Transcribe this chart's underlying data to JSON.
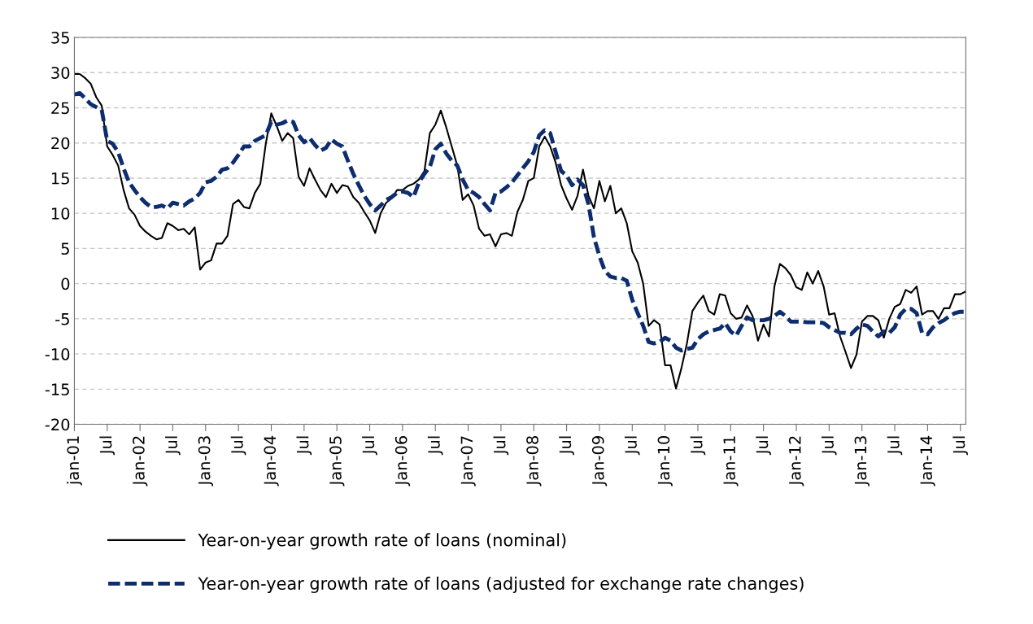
{
  "chart_data": {
    "type": "line",
    "categories": [
      "jan-01",
      null,
      null,
      null,
      null,
      null,
      "Jul",
      null,
      null,
      null,
      null,
      null,
      "Jan-02",
      null,
      null,
      null,
      null,
      null,
      "Jul",
      null,
      null,
      null,
      null,
      null,
      "Jan-03",
      null,
      null,
      null,
      null,
      null,
      "Jul",
      null,
      null,
      null,
      null,
      null,
      "Jan-04",
      null,
      null,
      null,
      null,
      null,
      "Jul",
      null,
      null,
      null,
      null,
      null,
      "Jan-05",
      null,
      null,
      null,
      null,
      null,
      "Jul",
      null,
      null,
      null,
      null,
      null,
      "Jan-06",
      null,
      null,
      null,
      null,
      null,
      "Jul",
      null,
      null,
      null,
      null,
      null,
      "Jan-07",
      null,
      null,
      null,
      null,
      null,
      "Jul",
      null,
      null,
      null,
      null,
      null,
      "Jan-08",
      null,
      null,
      null,
      null,
      null,
      "Jul",
      null,
      null,
      null,
      null,
      null,
      "Jan-09",
      null,
      null,
      null,
      null,
      null,
      "Jul",
      null,
      null,
      null,
      null,
      null,
      "Jan-10",
      null,
      null,
      null,
      null,
      null,
      "Jul",
      null,
      null,
      null,
      null,
      null,
      "Jan-11",
      null,
      null,
      null,
      null,
      null,
      "Jul",
      null,
      null,
      null,
      null,
      null,
      "Jan-12",
      null,
      null,
      null,
      null,
      null,
      "Jul",
      null,
      null,
      null,
      null,
      null,
      "Jan-13",
      null,
      null,
      null,
      null,
      null,
      "Jul",
      null,
      null,
      null,
      null,
      null,
      "Jan-14",
      null,
      null,
      null,
      null,
      null,
      "Jul",
      null
    ],
    "series": [
      {
        "name": "Year-on-year growth rate of loans (nominal)",
        "color": "#000000",
        "line_style": "solid",
        "values": [
          29.8,
          29.8,
          29.2,
          28.4,
          26.5,
          25.3,
          19.5,
          18.3,
          16.8,
          13.3,
          10.7,
          9.8,
          8.2,
          7.4,
          6.8,
          6.3,
          6.5,
          8.6,
          8.2,
          7.6,
          7.8,
          7.0,
          8.0,
          2.0,
          3.0,
          3.3,
          5.7,
          5.7,
          6.8,
          11.3,
          11.9,
          10.9,
          10.7,
          12.9,
          14.2,
          19.9,
          24.2,
          22.4,
          20.3,
          21.4,
          20.7,
          15.2,
          13.9,
          16.4,
          14.8,
          13.3,
          12.3,
          14.2,
          12.9,
          14.0,
          13.8,
          12.3,
          11.5,
          10.2,
          9.0,
          7.2,
          10.0,
          11.5,
          12.1,
          13.3,
          13.3,
          13.9,
          14.2,
          14.8,
          16.0,
          21.4,
          22.6,
          24.6,
          22.2,
          19.5,
          16.8,
          11.9,
          12.7,
          11.1,
          7.8,
          6.8,
          7.0,
          5.3,
          7.0,
          7.2,
          6.8,
          10.2,
          11.9,
          14.6,
          15.0,
          19.5,
          20.9,
          19.5,
          17.2,
          14.0,
          12.1,
          10.5,
          12.5,
          16.2,
          12.5,
          10.7,
          14.6,
          11.7,
          13.9,
          10.0,
          10.7,
          8.6,
          4.6,
          3.0,
          0.0,
          -6.0,
          -5.2,
          -5.8,
          -11.6,
          -11.6,
          -14.9,
          -12.0,
          -8.5,
          -3.9,
          -2.7,
          -1.7,
          -3.9,
          -4.4,
          -1.5,
          -1.7,
          -4.2,
          -5.0,
          -4.8,
          -3.1,
          -4.6,
          -8.1,
          -5.8,
          -7.5,
          -0.4,
          2.8,
          2.2,
          1.2,
          -0.5,
          -0.9,
          1.6,
          0.0,
          1.8,
          -0.4,
          -4.4,
          -4.2,
          -7.5,
          -9.7,
          -12.0,
          -10.1,
          -5.4,
          -4.6,
          -4.6,
          -5.2,
          -7.7,
          -5.0,
          -3.3,
          -2.9,
          -0.9,
          -1.3,
          -0.4,
          -4.4,
          -3.9,
          -3.9,
          -5.0,
          -3.5,
          -3.5,
          -1.5,
          -1.5,
          -1.1
        ]
      },
      {
        "name": "Year-on-year growth rate of loans (adjusted for exchange rate changes)",
        "color": "#0d2d6e",
        "line_style": "dashed",
        "values": [
          26.9,
          27.1,
          26.3,
          25.5,
          25.1,
          24.7,
          20.3,
          19.9,
          18.7,
          16.4,
          14.4,
          13.3,
          12.3,
          11.5,
          10.9,
          10.9,
          11.1,
          10.7,
          11.5,
          11.3,
          11.1,
          11.7,
          12.1,
          12.9,
          14.4,
          14.6,
          15.2,
          16.2,
          16.4,
          17.2,
          18.3,
          19.5,
          19.5,
          20.3,
          20.7,
          21.1,
          23.0,
          22.6,
          22.8,
          23.2,
          23.0,
          21.1,
          20.1,
          20.7,
          19.7,
          18.9,
          19.3,
          20.5,
          19.9,
          19.5,
          17.5,
          15.6,
          14.0,
          12.5,
          11.3,
          10.4,
          11.1,
          11.9,
          12.3,
          12.9,
          13.1,
          12.9,
          12.3,
          14.4,
          15.6,
          16.6,
          19.1,
          19.9,
          18.5,
          17.5,
          16.8,
          14.8,
          13.3,
          12.9,
          12.3,
          11.3,
          10.4,
          12.9,
          13.1,
          13.7,
          14.4,
          15.4,
          16.4,
          17.4,
          18.7,
          21.1,
          21.8,
          21.4,
          18.7,
          16.0,
          15.4,
          14.0,
          14.8,
          14.0,
          11.3,
          6.6,
          3.9,
          1.8,
          1.0,
          0.8,
          0.8,
          0.4,
          -2.3,
          -4.2,
          -6.0,
          -8.3,
          -8.5,
          -8.3,
          -7.7,
          -8.1,
          -9.1,
          -9.5,
          -9.3,
          -9.1,
          -7.9,
          -7.2,
          -6.8,
          -6.6,
          -6.4,
          -5.6,
          -6.8,
          -7.4,
          -6.0,
          -4.8,
          -5.2,
          -5.2,
          -5.2,
          -5.0,
          -4.6,
          -4.0,
          -4.6,
          -5.4,
          -5.4,
          -5.4,
          -5.5,
          -5.5,
          -5.5,
          -5.6,
          -6.2,
          -6.6,
          -7.0,
          -7.0,
          -7.2,
          -6.4,
          -5.8,
          -6.0,
          -6.8,
          -7.5,
          -6.8,
          -7.0,
          -6.2,
          -4.4,
          -3.6,
          -3.6,
          -4.2,
          -7.0,
          -7.2,
          -6.2,
          -5.6,
          -5.2,
          -4.6,
          -4.2,
          -4.0,
          -4.0
        ]
      }
    ],
    "ylim": [
      -20,
      35
    ],
    "yticks": [
      -20,
      -15,
      -10,
      -5,
      0,
      5,
      10,
      15,
      20,
      25,
      30,
      35
    ],
    "grid": "y",
    "legend": "bottom",
    "marker": "none"
  }
}
